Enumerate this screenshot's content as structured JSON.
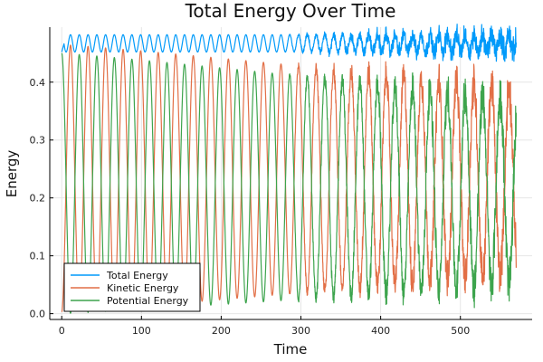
{
  "chart_data": {
    "type": "line",
    "title": "Total Energy Over Time",
    "xlabel": "Time",
    "ylabel": "Energy",
    "xlim": [
      -15,
      590
    ],
    "ylim": [
      -0.01,
      0.495
    ],
    "xticks": [
      0,
      100,
      200,
      300,
      400,
      500
    ],
    "yticks": [
      0.0,
      0.1,
      0.2,
      0.3,
      0.4
    ],
    "xtick_labels": [
      "0",
      "100",
      "200",
      "300",
      "400",
      "500"
    ],
    "ytick_labels": [
      "0.0",
      "0.1",
      "0.2",
      "0.3",
      "0.4"
    ],
    "grid": true,
    "legend_position": "bottom-left",
    "x_range": [
      0,
      570
    ],
    "series": [
      {
        "name": "Total Energy",
        "color": "#009AFA",
        "model": "oscillating",
        "baseline": 0.467,
        "amplitude_start": 0.015,
        "period": 22,
        "noise_start_time": 280,
        "typical_range": [
          0.44,
          0.482
        ]
      },
      {
        "name": "Kinetic Energy",
        "color": "#E26F46",
        "model": "oscillating",
        "period": 22,
        "phase": "starts at minimum",
        "min_start": 0.003,
        "max_start": 0.465,
        "min_end": 0.07,
        "max_end": 0.39
      },
      {
        "name": "Potential Energy",
        "color": "#3DA44D",
        "model": "oscillating",
        "period": 22,
        "phase": "starts at maximum",
        "min_start": 0.0,
        "max_start": 0.45,
        "min_end": 0.05,
        "max_end": 0.37
      }
    ]
  }
}
